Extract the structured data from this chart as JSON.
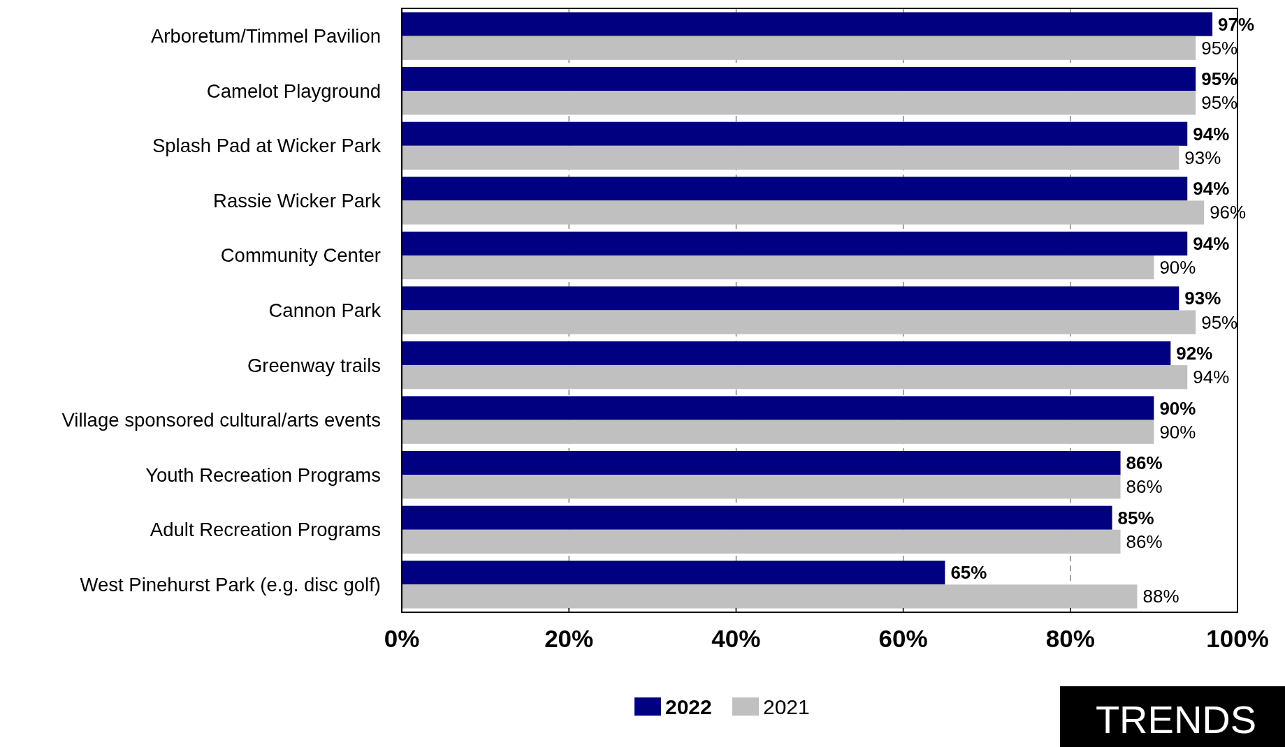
{
  "chart_data": {
    "type": "bar",
    "orientation": "horizontal",
    "categories": [
      "Arboretum/Timmel Pavilion",
      "Camelot Playground",
      "Splash Pad at Wicker Park",
      "Rassie Wicker Park",
      "Community Center",
      "Cannon Park",
      "Greenway trails",
      "Village sponsored cultural/arts events",
      "Youth Recreation Programs",
      "Adult Recreation Programs",
      "West Pinehurst Park (e.g. disc golf)"
    ],
    "series": [
      {
        "name": "2022",
        "color": "#000080",
        "values": [
          97,
          95,
          94,
          94,
          94,
          93,
          92,
          90,
          86,
          85,
          65
        ],
        "value_labels": [
          "97%",
          "95%",
          "94%",
          "94%",
          "94%",
          "93%",
          "92%",
          "90%",
          "86%",
          "85%",
          "65%"
        ]
      },
      {
        "name": "2021",
        "color": "#c0c0c0",
        "values": [
          95,
          95,
          93,
          96,
          90,
          95,
          94,
          90,
          86,
          86,
          88
        ],
        "value_labels": [
          "95%",
          "95%",
          "93%",
          "96%",
          "90%",
          "95%",
          "94%",
          "90%",
          "86%",
          "86%",
          "88%"
        ]
      }
    ],
    "xlim": [
      0,
      100
    ],
    "xticks": [
      {
        "value": 0,
        "label": "0%"
      },
      {
        "value": 20,
        "label": "20%"
      },
      {
        "value": 40,
        "label": "40%"
      },
      {
        "value": 60,
        "label": "60%"
      },
      {
        "value": 80,
        "label": "80%"
      },
      {
        "value": 100,
        "label": "100%"
      }
    ],
    "grid": "x",
    "legend": "bottom",
    "annotations": [
      "TRENDS"
    ]
  }
}
